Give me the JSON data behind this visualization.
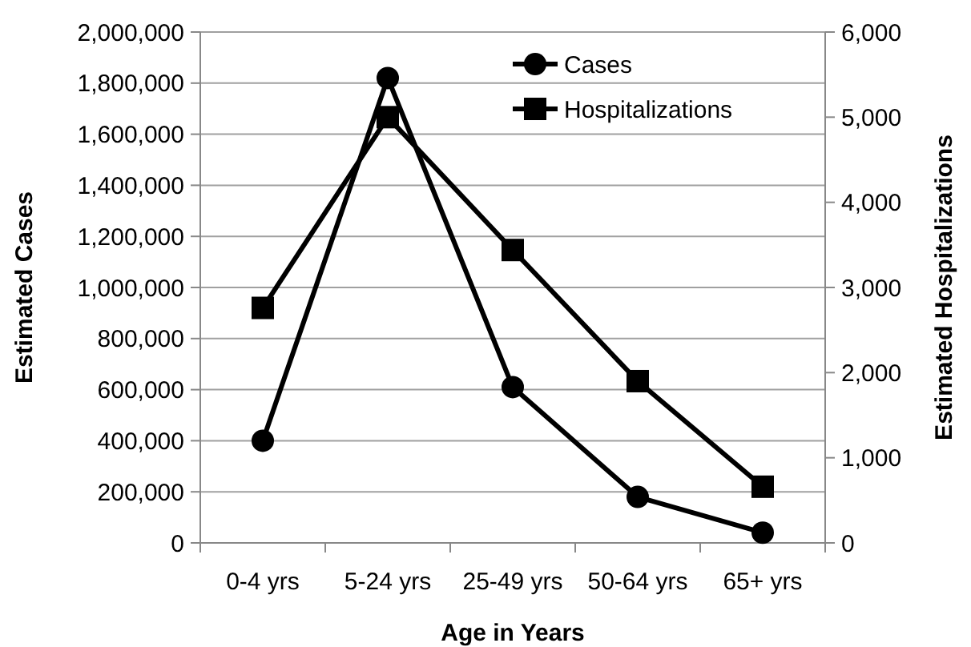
{
  "chart_data": {
    "type": "line",
    "xlabel": "Age in Years",
    "ylabel": "Estimated Cases",
    "y2label": "Estimated Hospitalizations",
    "categories": [
      "0-4 yrs",
      "5-24 yrs",
      "25-49 yrs",
      "50-64 yrs",
      "65+ yrs"
    ],
    "series": [
      {
        "name": "Cases",
        "color": "#000000",
        "marker": "circle",
        "values": [
          400000,
          1820000,
          610000,
          180000,
          40000
        ]
      },
      {
        "name": "Hospitalizations",
        "color": "#000000",
        "marker": "square",
        "axis": "y2",
        "values": [
          2760,
          5000,
          3440,
          1900,
          660
        ]
      }
    ],
    "ylim": [
      0,
      2000000
    ],
    "yticks": [
      {
        "value": 0,
        "label": "0"
      },
      {
        "value": 200000,
        "label": "200,000"
      },
      {
        "value": 400000,
        "label": "400,000"
      },
      {
        "value": 600000,
        "label": "600,000"
      },
      {
        "value": 800000,
        "label": "800,000"
      },
      {
        "value": 1000000,
        "label": "1,000,000"
      },
      {
        "value": 1200000,
        "label": "1,200,000"
      },
      {
        "value": 1400000,
        "label": "1,400,000"
      },
      {
        "value": 1600000,
        "label": "1,600,000"
      },
      {
        "value": 1800000,
        "label": "1,800,000"
      },
      {
        "value": 2000000,
        "label": "2,000,000"
      }
    ],
    "y2lim": [
      0,
      6000
    ],
    "y2ticks": [
      {
        "value": 0,
        "label": "0"
      },
      {
        "value": 1000,
        "label": "1,000"
      },
      {
        "value": 2000,
        "label": "2,000"
      },
      {
        "value": 3000,
        "label": "3,000"
      },
      {
        "value": 4000,
        "label": "4,000"
      },
      {
        "value": 5000,
        "label": "5,000"
      },
      {
        "value": 6000,
        "label": "6,000"
      }
    ],
    "grid": "y",
    "legend": "top right",
    "line_style": "solid"
  }
}
